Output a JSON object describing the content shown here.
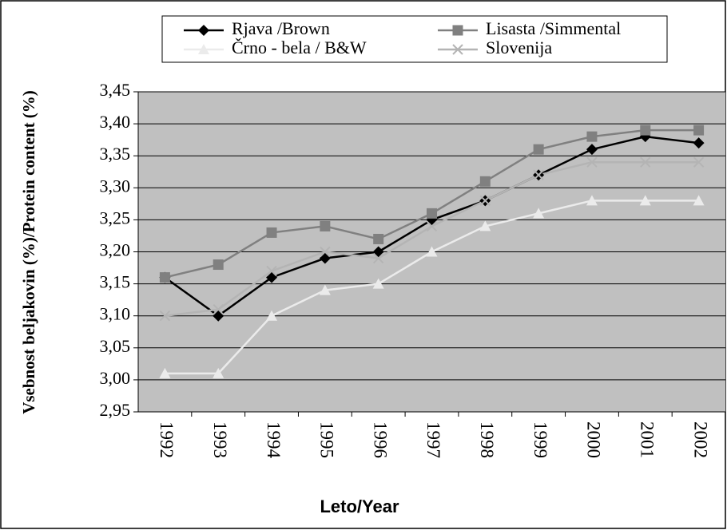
{
  "chart_data": {
    "type": "line",
    "y_label": "Vsebnost beljakovin (%)/Protein content (%)",
    "x_label": "Leto/Year",
    "categories": [
      "1992",
      "1993",
      "1994",
      "1995",
      "1996",
      "1997",
      "1998",
      "1999",
      "2000",
      "2001",
      "2002"
    ],
    "series": [
      {
        "name": "Rjava /Brown",
        "color": "#000000",
        "marker": "diamond",
        "values": [
          3.16,
          3.1,
          3.16,
          3.19,
          3.2,
          3.25,
          3.28,
          3.32,
          3.36,
          3.38,
          3.37
        ]
      },
      {
        "name": "Lisasta /Simmental",
        "color": "#808080",
        "marker": "square",
        "values": [
          3.16,
          3.18,
          3.23,
          3.24,
          3.22,
          3.26,
          3.31,
          3.36,
          3.38,
          3.39,
          3.39
        ]
      },
      {
        "name": "Črno - bela / B&W",
        "color": "#ebebeb",
        "marker": "triangle",
        "values": [
          3.01,
          3.01,
          3.1,
          3.14,
          3.15,
          3.2,
          3.24,
          3.26,
          3.28,
          3.28,
          3.28
        ]
      },
      {
        "name": "Slovenija",
        "color": "#b4b4b4",
        "marker": "x",
        "values": [
          3.1,
          3.11,
          3.17,
          3.2,
          3.19,
          3.24,
          3.28,
          3.32,
          3.34,
          3.34,
          3.34
        ]
      }
    ],
    "ylim": [
      2.95,
      3.45
    ],
    "yticks": [
      {
        "value": 2.95,
        "label": "2,95"
      },
      {
        "value": 3.0,
        "label": "3,00"
      },
      {
        "value": 3.05,
        "label": "3,05"
      },
      {
        "value": 3.1,
        "label": "3,10"
      },
      {
        "value": 3.15,
        "label": "3,15"
      },
      {
        "value": 3.2,
        "label": "3,20"
      },
      {
        "value": 3.25,
        "label": "3,25"
      },
      {
        "value": 3.3,
        "label": "3,30"
      },
      {
        "value": 3.35,
        "label": "3,35"
      },
      {
        "value": 3.4,
        "label": "3,40"
      },
      {
        "value": 3.45,
        "label": "3,45"
      }
    ],
    "grid": true,
    "legend": "top"
  }
}
